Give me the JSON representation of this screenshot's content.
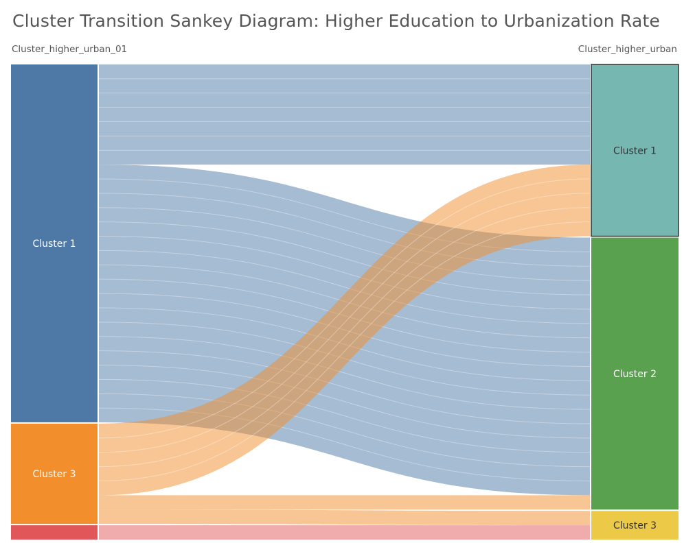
{
  "title": "Cluster Transition Sankey Diagram: Higher Education to Urbanization Rate",
  "headers": {
    "left": "Cluster_higher_urban_01",
    "right": "Cluster_higher_urban"
  },
  "colors": {
    "left": {
      "Cluster 1": "#4e79a7",
      "Cluster 3": "#f28e2b",
      "Cluster 4": "#e15759"
    },
    "right": {
      "Cluster 1": "#76b7b2",
      "Cluster 2": "#59a14f",
      "Cluster 3": "#edc948"
    },
    "links": {
      "Cluster 1": "#4e79a7",
      "Cluster 3": "#f28e2b",
      "Cluster 4": "#e15759"
    }
  },
  "chart_data": {
    "type": "sankey",
    "left_nodes": [
      {
        "id": "L1",
        "label": "Cluster 1",
        "value": 25
      },
      {
        "id": "L3",
        "label": "Cluster 3",
        "value": 7
      },
      {
        "id": "L4",
        "label": "",
        "value": 1
      }
    ],
    "right_nodes": [
      {
        "id": "R1",
        "label": "Cluster 1",
        "value": 12
      },
      {
        "id": "R2",
        "label": "Cluster 2",
        "value": 19
      },
      {
        "id": "R3",
        "label": "Cluster 3",
        "value": 2
      }
    ],
    "links": [
      {
        "source": "L1",
        "target": "R1",
        "value": 7
      },
      {
        "source": "L1",
        "target": "R2",
        "value": 18
      },
      {
        "source": "L3",
        "target": "R1",
        "value": 5
      },
      {
        "source": "L3",
        "target": "R2",
        "value": 1
      },
      {
        "source": "L3",
        "target": "R3",
        "value": 1
      },
      {
        "source": "L4",
        "target": "R3",
        "value": 1
      }
    ]
  }
}
